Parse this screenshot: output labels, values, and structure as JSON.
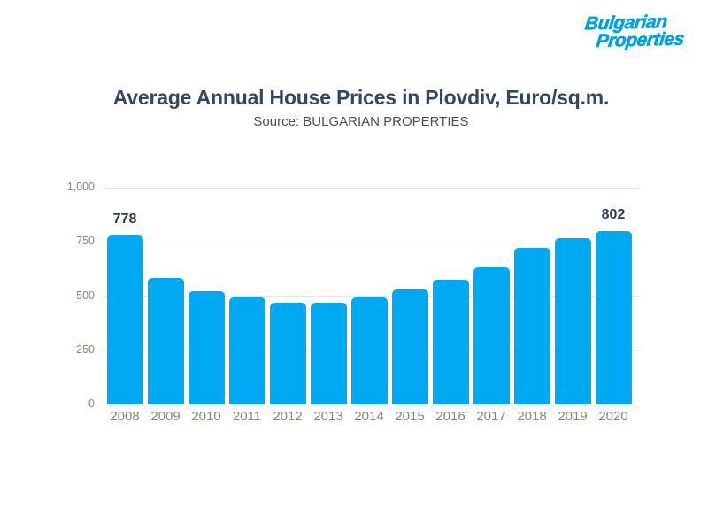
{
  "logo": {
    "line1": "Bulgarian",
    "line2": "Properties",
    "color": "#00a0e6"
  },
  "header": {
    "title": "Average Annual House Prices in Plovdiv, Euro/sq.m.",
    "subtitle": "Source: BULGARIAN PROPERTIES",
    "title_color": "#35485a",
    "subtitle_color": "#4f4f4f"
  },
  "chart_data": {
    "type": "bar",
    "title": "Average Annual House Prices in Plovdiv, Euro/sq.m.",
    "subtitle": "Source: BULGARIAN PROPERTIES",
    "categories": [
      "2008",
      "2009",
      "2010",
      "2011",
      "2012",
      "2013",
      "2014",
      "2015",
      "2016",
      "2017",
      "2018",
      "2019",
      "2020"
    ],
    "values": [
      778,
      585,
      524,
      492,
      471,
      469,
      492,
      529,
      574,
      632,
      721,
      766,
      802
    ],
    "bar_labels": [
      "778",
      "",
      "",
      "",
      "",
      "",
      "",
      "",
      "",
      "",
      "",
      "",
      "802"
    ],
    "ylim": [
      0,
      1000
    ],
    "yticks": [
      0,
      250,
      500,
      750,
      1000
    ],
    "ytick_labels": [
      "0",
      "250",
      "500",
      "750",
      "1,000"
    ],
    "grid": "horizontal",
    "legend": "none",
    "colors": {
      "bar": "#00aaf2",
      "grid": "#e7e7e7",
      "axis_label": "#8d8475",
      "value_label": "#2c3c4e"
    }
  }
}
